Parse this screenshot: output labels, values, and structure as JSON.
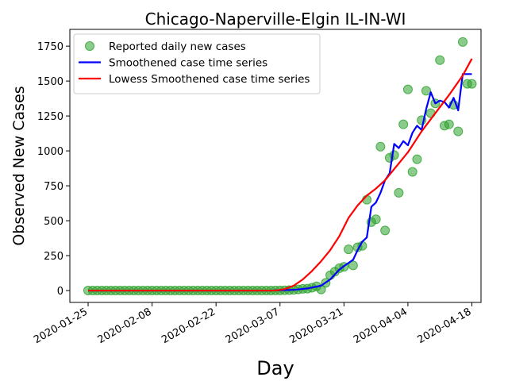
{
  "chart_data": {
    "type": "line",
    "title": "Chicago-Naperville-Elgin IL-IN-WI",
    "xlabel": "Day",
    "ylabel": "Observed New Cases",
    "x_range": [
      "2020-01-21",
      "2020-04-20"
    ],
    "ylim": [
      -85,
      1870
    ],
    "y_ticks": [
      0,
      250,
      500,
      750,
      1000,
      1250,
      1500,
      1750
    ],
    "x_ticks": [
      "2020-01-25",
      "2020-02-08",
      "2020-02-22",
      "2020-03-07",
      "2020-03-21",
      "2020-04-04",
      "2020-04-18"
    ],
    "grid": false,
    "legend_position": "top-left",
    "colors": {
      "reported": "#2ca02c",
      "smooth": "#0000ff",
      "lowess": "#ff0000"
    },
    "series": [
      {
        "name": "Reported daily new cases",
        "style": "scatter",
        "x": [
          "2020-01-25",
          "2020-01-26",
          "2020-01-27",
          "2020-01-28",
          "2020-01-29",
          "2020-01-30",
          "2020-01-31",
          "2020-02-01",
          "2020-02-02",
          "2020-02-03",
          "2020-02-04",
          "2020-02-05",
          "2020-02-06",
          "2020-02-07",
          "2020-02-08",
          "2020-02-09",
          "2020-02-10",
          "2020-02-11",
          "2020-02-12",
          "2020-02-13",
          "2020-02-14",
          "2020-02-15",
          "2020-02-16",
          "2020-02-17",
          "2020-02-18",
          "2020-02-19",
          "2020-02-20",
          "2020-02-21",
          "2020-02-22",
          "2020-02-23",
          "2020-02-24",
          "2020-02-25",
          "2020-02-26",
          "2020-02-27",
          "2020-02-28",
          "2020-02-29",
          "2020-03-01",
          "2020-03-02",
          "2020-03-03",
          "2020-03-04",
          "2020-03-05",
          "2020-03-06",
          "2020-03-07",
          "2020-03-08",
          "2020-03-09",
          "2020-03-10",
          "2020-03-11",
          "2020-03-12",
          "2020-03-13",
          "2020-03-14",
          "2020-03-15",
          "2020-03-16",
          "2020-03-17",
          "2020-03-18",
          "2020-03-19",
          "2020-03-20",
          "2020-03-21",
          "2020-03-22",
          "2020-03-23",
          "2020-03-24",
          "2020-03-25",
          "2020-03-26",
          "2020-03-27",
          "2020-03-28",
          "2020-03-29",
          "2020-03-30",
          "2020-03-31",
          "2020-04-01",
          "2020-04-02",
          "2020-04-03",
          "2020-04-04",
          "2020-04-05",
          "2020-04-06",
          "2020-04-07",
          "2020-04-08",
          "2020-04-09",
          "2020-04-10",
          "2020-04-11",
          "2020-04-12",
          "2020-04-13",
          "2020-04-14",
          "2020-04-15",
          "2020-04-16",
          "2020-04-17",
          "2020-04-18"
        ],
        "values": [
          0,
          0,
          0,
          0,
          0,
          0,
          0,
          0,
          0,
          0,
          0,
          0,
          0,
          0,
          0,
          0,
          0,
          0,
          0,
          0,
          0,
          0,
          0,
          0,
          0,
          0,
          0,
          0,
          0,
          0,
          0,
          0,
          0,
          0,
          0,
          0,
          0,
          0,
          0,
          0,
          0,
          1,
          1,
          2,
          3,
          5,
          8,
          12,
          14,
          20,
          30,
          8,
          55,
          110,
          135,
          160,
          170,
          295,
          180,
          310,
          320,
          650,
          490,
          510,
          1030,
          430,
          950,
          970,
          700,
          1190,
          1440,
          850,
          940,
          1220,
          1430,
          1270,
          1340,
          1650,
          1180,
          1190,
          1330,
          1140,
          1780,
          1480,
          1480
        ]
      },
      {
        "name": "Smoothened case time series",
        "style": "line",
        "x": [
          "2020-01-25",
          "2020-03-05",
          "2020-03-10",
          "2020-03-13",
          "2020-03-16",
          "2020-03-18",
          "2020-03-20",
          "2020-03-21",
          "2020-03-23",
          "2020-03-24",
          "2020-03-25",
          "2020-03-26",
          "2020-03-27",
          "2020-03-28",
          "2020-03-29",
          "2020-03-30",
          "2020-03-31",
          "2020-04-01",
          "2020-04-02",
          "2020-04-03",
          "2020-04-04",
          "2020-04-05",
          "2020-04-06",
          "2020-04-07",
          "2020-04-08",
          "2020-04-09",
          "2020-04-10",
          "2020-04-11",
          "2020-04-12",
          "2020-04-13",
          "2020-04-14",
          "2020-04-15",
          "2020-04-16",
          "2020-04-17",
          "2020-04-18"
        ],
        "values": [
          0,
          0,
          5,
          15,
          35,
          80,
          150,
          175,
          220,
          290,
          350,
          380,
          600,
          630,
          700,
          790,
          840,
          1050,
          1020,
          1070,
          1040,
          1130,
          1180,
          1150,
          1300,
          1420,
          1340,
          1360,
          1350,
          1310,
          1380,
          1290,
          1550,
          1550,
          1550
        ]
      },
      {
        "name": "Lowess Smoothened case time series",
        "style": "line",
        "x": [
          "2020-01-25",
          "2020-03-03",
          "2020-03-06",
          "2020-03-08",
          "2020-03-10",
          "2020-03-12",
          "2020-03-14",
          "2020-03-16",
          "2020-03-18",
          "2020-03-20",
          "2020-03-22",
          "2020-03-24",
          "2020-03-26",
          "2020-03-28",
          "2020-03-30",
          "2020-04-01",
          "2020-04-04",
          "2020-04-07",
          "2020-04-10",
          "2020-04-13",
          "2020-04-16",
          "2020-04-18"
        ],
        "values": [
          0,
          0,
          0,
          10,
          35,
          80,
          140,
          210,
          290,
          390,
          520,
          610,
          680,
          730,
          790,
          870,
          990,
          1140,
          1270,
          1400,
          1540,
          1660
        ]
      }
    ]
  }
}
